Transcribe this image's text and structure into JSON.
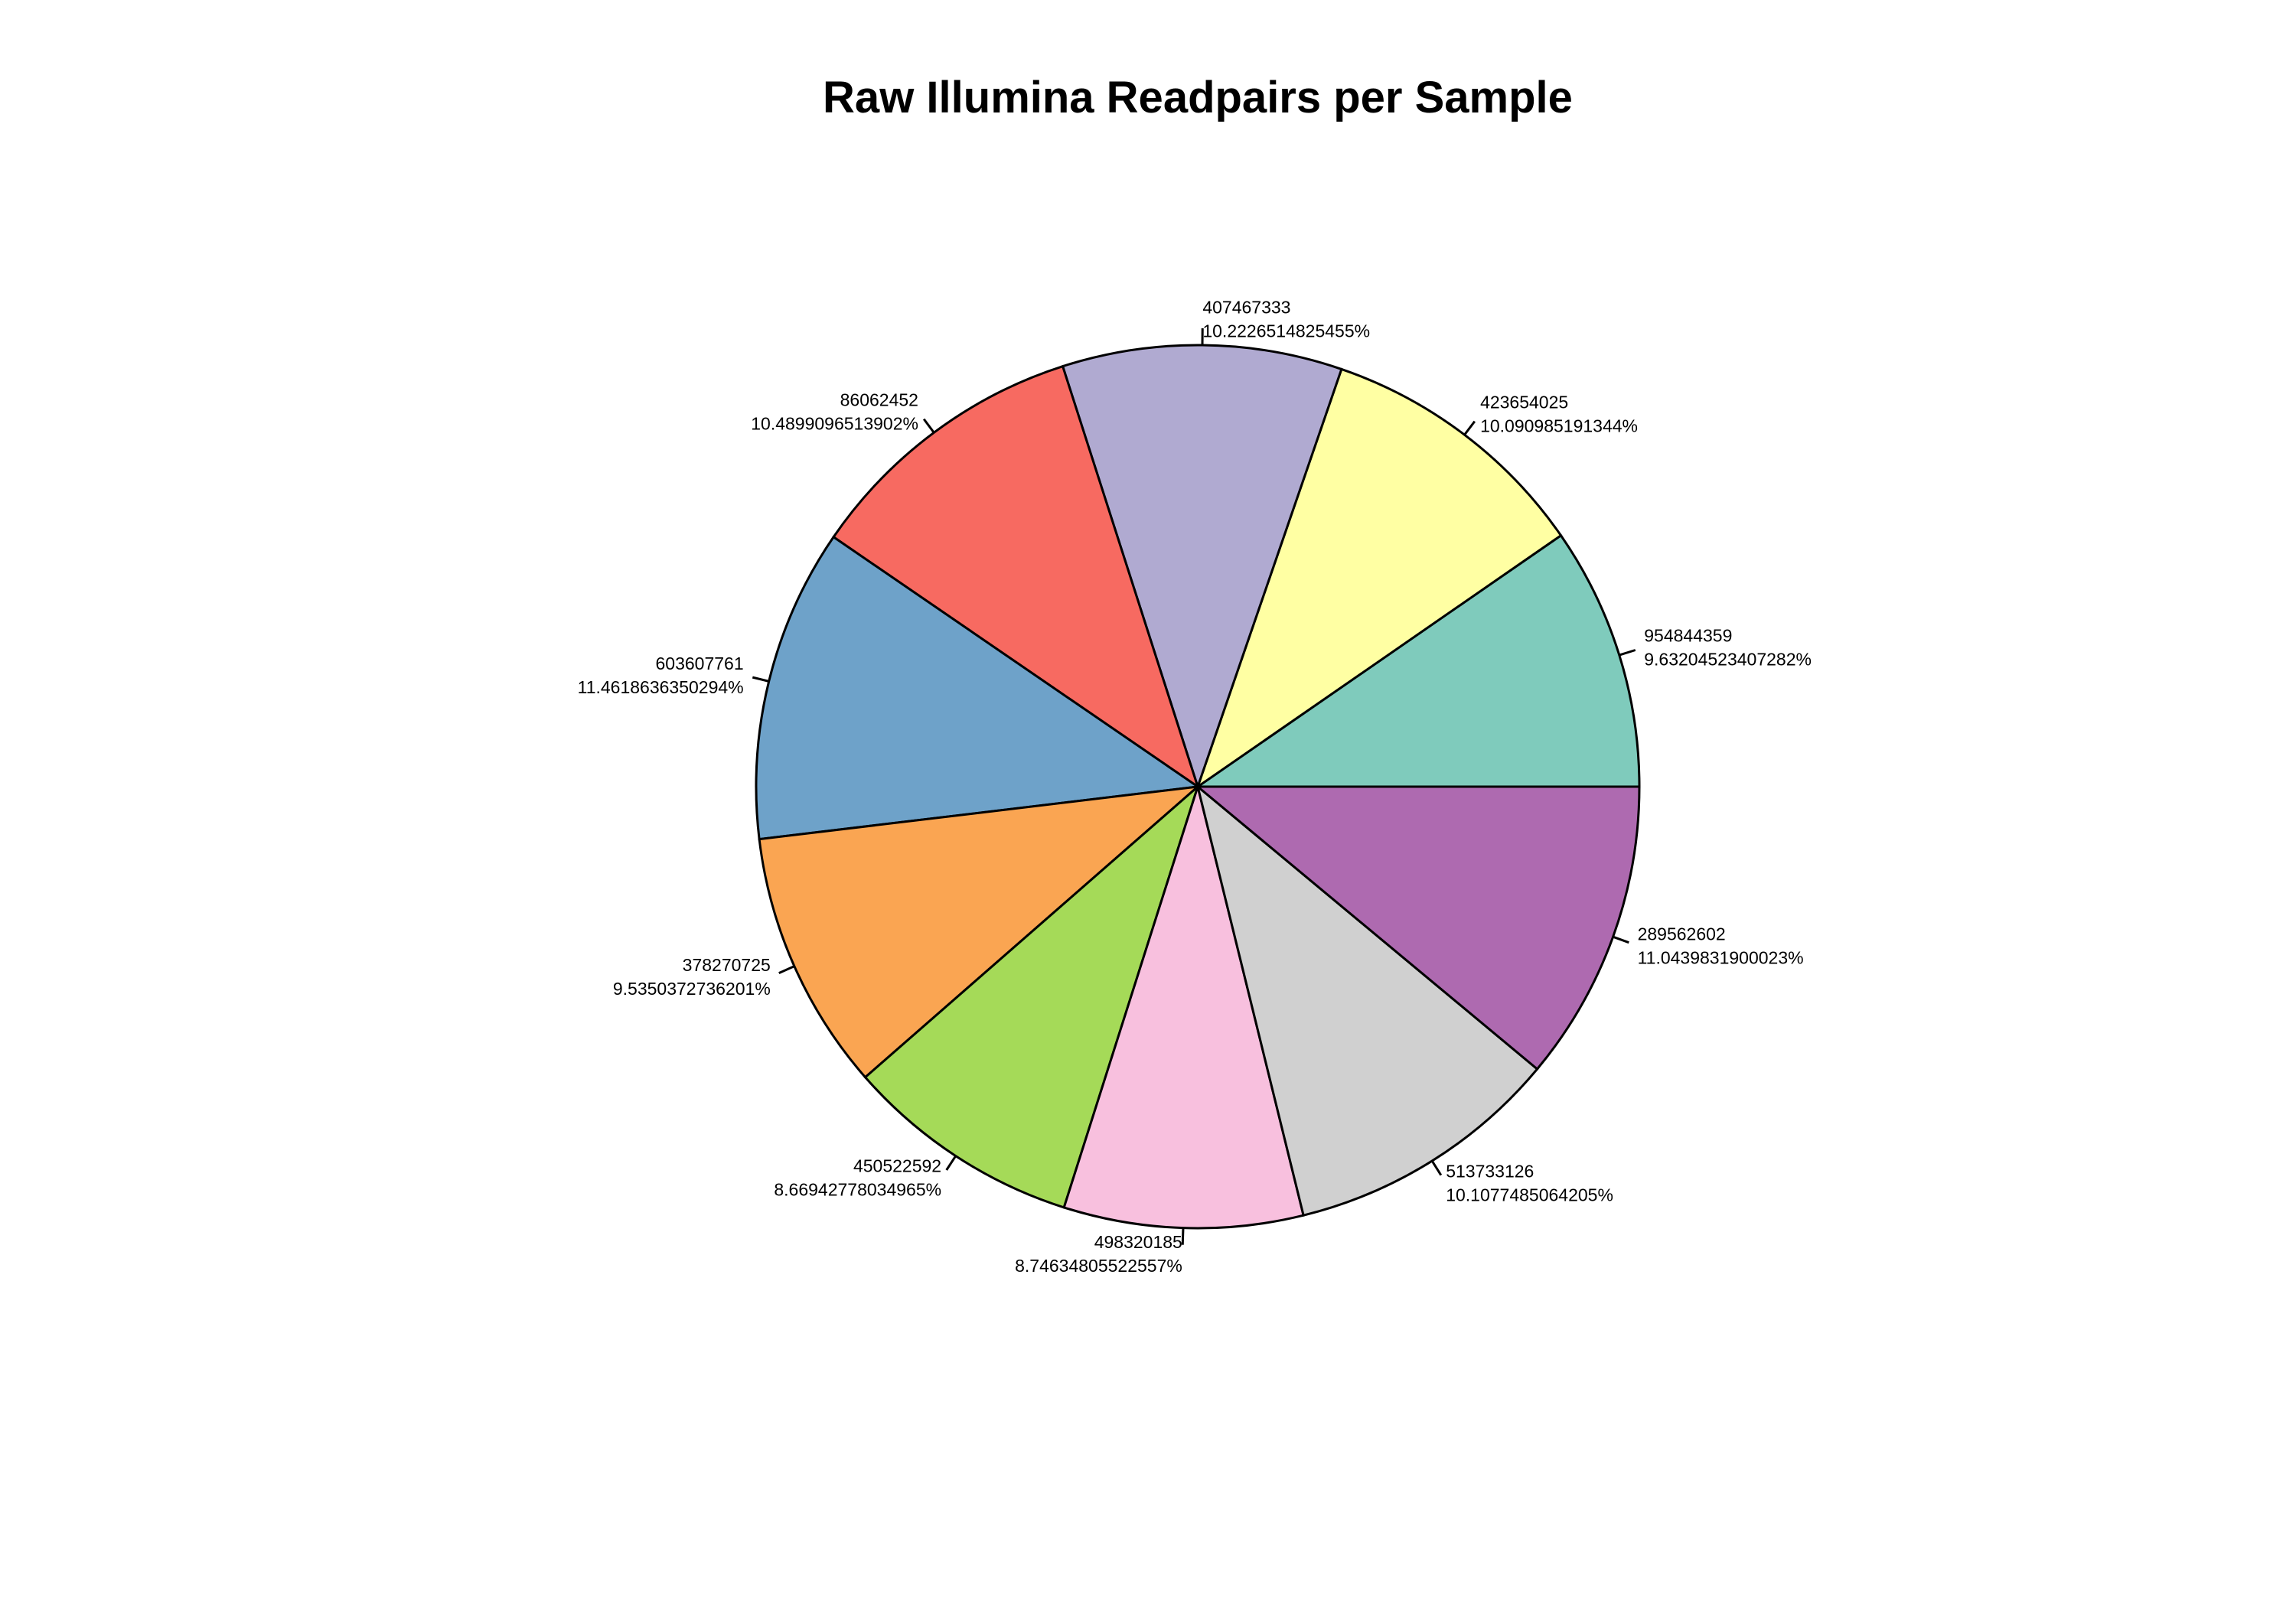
{
  "chart_data": {
    "type": "pie",
    "title": "Raw Illumina Readpairs per Sample",
    "start_angle_deg": 0,
    "direction": "counterclockwise",
    "slices": [
      {
        "count": "954844359",
        "percent_label": "9.63204523407282%",
        "value": 9.63204523407282,
        "color": "#7FCBBC"
      },
      {
        "count": "423654025",
        "percent_label": "10.090985191344%",
        "value": 10.090985191344,
        "color": "#FFFFA3"
      },
      {
        "count": "407467333",
        "percent_label": "10.2226514825455%",
        "value": 10.2226514825455,
        "color": "#B0AAD1"
      },
      {
        "count": "86062452",
        "percent_label": "10.4899096513902%",
        "value": 10.4899096513902,
        "color": "#F76A61"
      },
      {
        "count": "603607761",
        "percent_label": "11.4618636350294%",
        "value": 11.4618636350294,
        "color": "#6EA2C9"
      },
      {
        "count": "378270725",
        "percent_label": "9.5350372736201%",
        "value": 9.5350372736201,
        "color": "#FAA552"
      },
      {
        "count": "450522592",
        "percent_label": "8.66942778034965%",
        "value": 8.66942778034965,
        "color": "#A5DA58"
      },
      {
        "count": "498320185",
        "percent_label": "8.74634805522557%",
        "value": 8.74634805522557,
        "color": "#F8C0DE"
      },
      {
        "count": "513733126",
        "percent_label": "10.1077485064205%",
        "value": 10.1077485064205,
        "color": "#D0D0D0"
      },
      {
        "count": "289562602",
        "percent_label": "11.0439831900023%",
        "value": 11.0439831900023,
        "color": "#AE6AB0"
      }
    ]
  }
}
